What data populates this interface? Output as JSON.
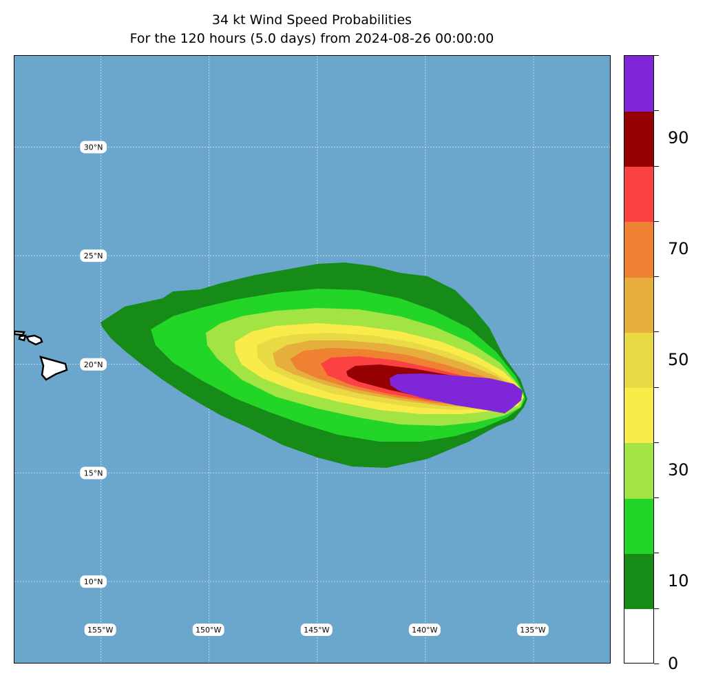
{
  "title": {
    "line1": "34 kt Wind Speed Probabilities",
    "line2": "For the 120 hours (5.0 days) from 2024-08-26 00:00:00"
  },
  "map": {
    "lon_range": [
      -159,
      -131.4
    ],
    "lat_range": [
      6.2,
      34.2
    ],
    "ocean_color": "#6ba6cc",
    "grid": true,
    "lat_labels": [
      {
        "lat": 30,
        "text": "30°N"
      },
      {
        "lat": 25,
        "text": "25°N"
      },
      {
        "lat": 20,
        "text": "20°N"
      },
      {
        "lat": 15,
        "text": "15°N"
      },
      {
        "lat": 10,
        "text": "10°N"
      }
    ],
    "lon_labels": [
      {
        "lon": -155,
        "text": "155°W"
      },
      {
        "lon": -150,
        "text": "150°W"
      },
      {
        "lon": -145,
        "text": "145°W"
      },
      {
        "lon": -140,
        "text": "140°W"
      },
      {
        "lon": -135,
        "text": "135°W"
      }
    ],
    "land": "Hawaiian Islands",
    "probability_contours_percent": [
      10,
      20,
      30,
      40,
      50,
      60,
      70,
      80,
      90
    ]
  },
  "colorbar": {
    "levels": [
      0,
      10,
      20,
      30,
      40,
      50,
      60,
      70,
      80,
      90,
      100
    ],
    "colors": [
      "#ffffff",
      "#168b17",
      "#22d527",
      "#a3e445",
      "#f9eb49",
      "#e8d945",
      "#e6ae3c",
      "#ef8133",
      "#fb4142",
      "#950003",
      "#7e26d8"
    ],
    "tick_labels": [
      {
        "value": 0,
        "text": "0"
      },
      {
        "value": 10,
        "text": "10"
      },
      {
        "value": 30,
        "text": "30"
      },
      {
        "value": 50,
        "text": "50"
      },
      {
        "value": 70,
        "text": "70"
      },
      {
        "value": 90,
        "text": "90"
      }
    ]
  }
}
